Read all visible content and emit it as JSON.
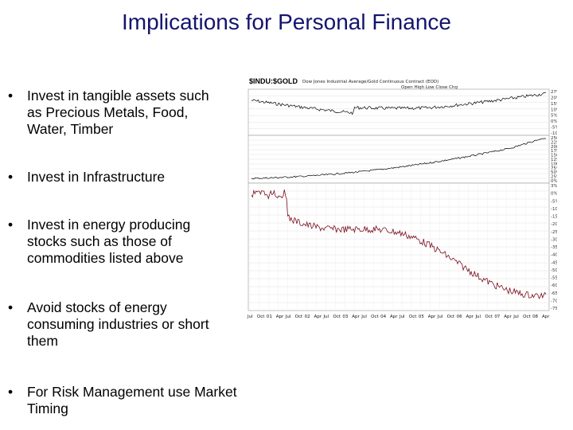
{
  "slide": {
    "title": "Implications for Personal Finance"
  },
  "bullets": [
    {
      "marker": "•",
      "lines": [
        "Invest in tangible assets such",
        "as Precious Metals, Food,",
        "Water, Timber"
      ]
    },
    {
      "marker": "•",
      "lines": [
        "Invest in Infrastructure"
      ]
    },
    {
      "marker": "•",
      "lines": [
        "Invest in energy producing",
        "stocks such as those of",
        "commodities listed above"
      ]
    },
    {
      "marker": "•",
      "lines": [
        "Avoid stocks of energy",
        "consuming industries or short",
        "them"
      ]
    },
    {
      "marker": "•",
      "lines": [
        "For Risk Management use Market",
        "Timing"
      ]
    }
  ],
  "figure": {
    "header_title": "$INDU:$GOLD",
    "header_info": "Dow Jones Industrial Average/Gold Continuous Contract (EOD)",
    "header_stats": "Open High Low Close Chg",
    "right_ticks_top": [
      "27%",
      "20%",
      "15%",
      "10%",
      "5%",
      "0%",
      "-5%",
      "-10%"
    ],
    "right_ticks_mid": [
      "250%",
      "225%",
      "200%",
      "175%",
      "150%",
      "125%",
      "100%",
      "75%",
      "50%",
      "25%",
      "0%"
    ],
    "right_ticks_bottom": [
      "3%",
      "0%",
      "-5%",
      "-10%",
      "-15%",
      "-20%",
      "-25%",
      "-30%",
      "-35%",
      "-40%",
      "-45%",
      "-50%",
      "-55%",
      "-60%",
      "-65%",
      "-70%",
      "-75%"
    ],
    "x_ticks": [
      "Jul",
      "Oct",
      "01",
      "Apr",
      "Jul",
      "Oct",
      "02",
      "Apr",
      "Jul",
      "Oct",
      "03",
      "Apr",
      "Jul",
      "Oct",
      "04",
      "Apr",
      "Jul",
      "Oct",
      "05",
      "Apr",
      "Jul",
      "Oct",
      "06",
      "Apr",
      "Jul",
      "Oct",
      "07",
      "Apr",
      "Jul",
      "Oct",
      "08",
      "Apr"
    ],
    "series_colors": {
      "top": "#000000",
      "mid": "#000000",
      "bottom": "#7a0f1e"
    }
  }
}
